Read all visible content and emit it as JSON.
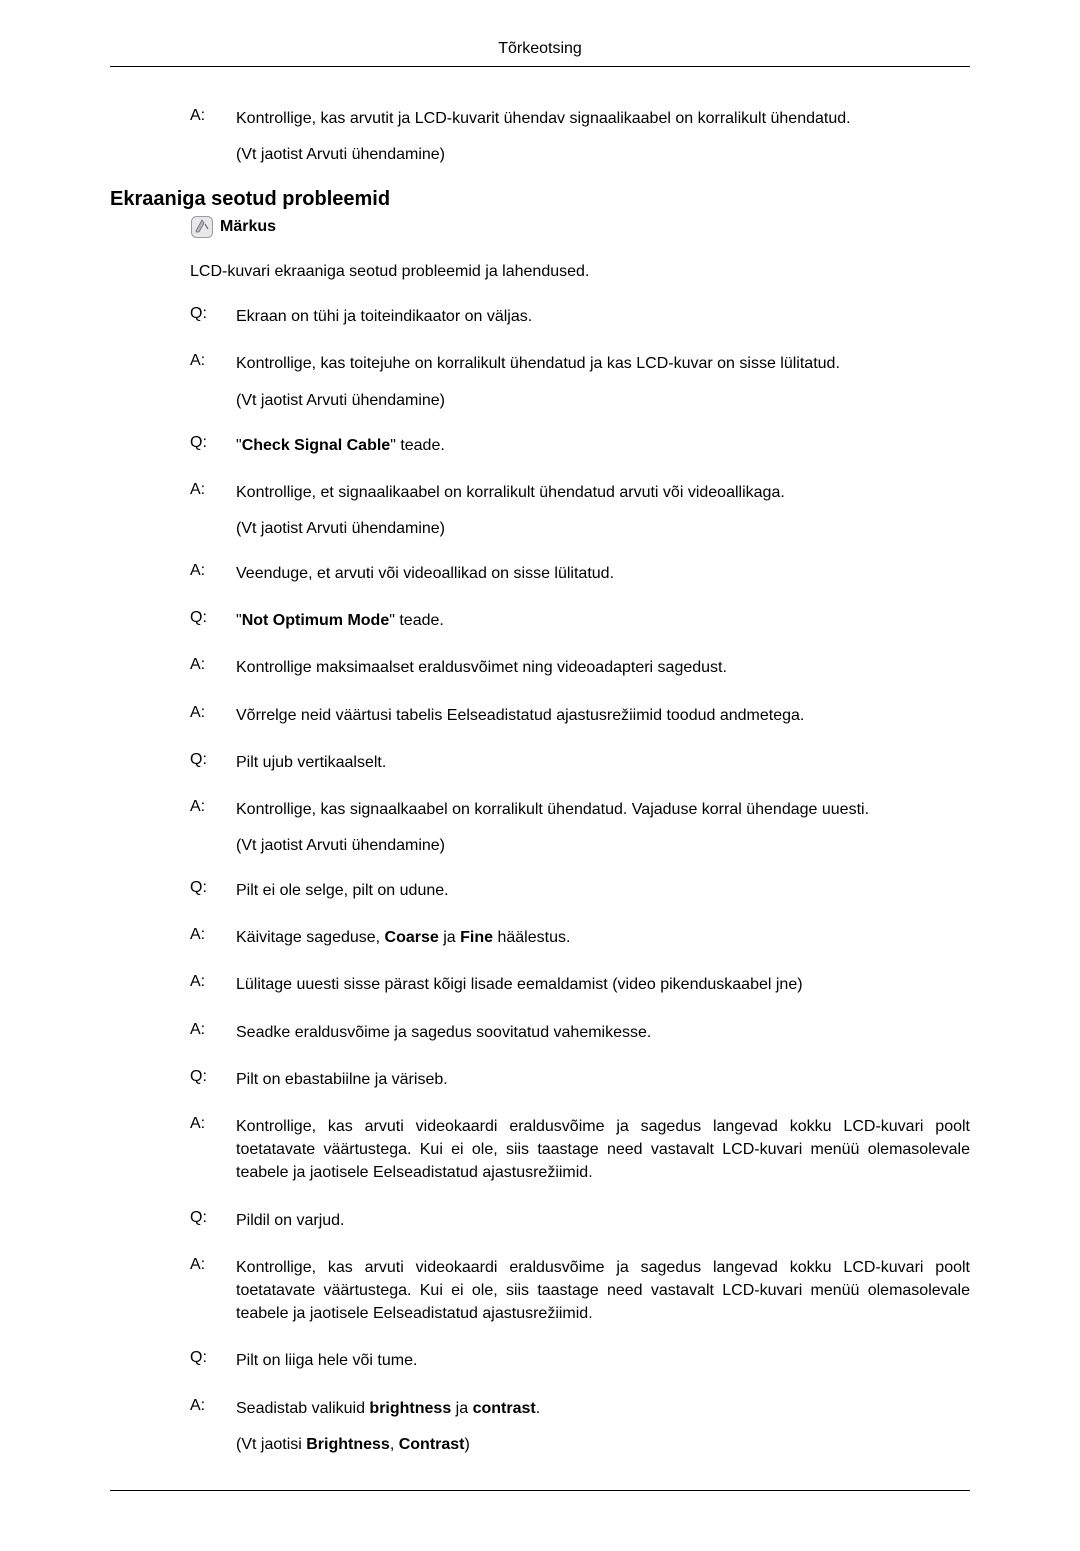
{
  "header": {
    "title": "Tõrkeotsing"
  },
  "top_qa": {
    "marker": "A:",
    "text": "Kontrollige, kas arvutit ja LCD-kuvarit ühendav signaalikaabel on korralikult ühendatud.",
    "sub": "(Vt jaotist Arvuti ühendamine)"
  },
  "section": {
    "heading": "Ekraaniga seotud probleemid",
    "note_label": "Märkus",
    "intro": "LCD-kuvari ekraaniga seotud probleemid ja lahendused."
  },
  "qa": [
    {
      "marker": "Q:",
      "segments": [
        {
          "t": "Ekraan on tühi ja toiteindikaator on väljas."
        }
      ]
    },
    {
      "marker": "A:",
      "segments": [
        {
          "t": "Kontrollige, kas toitejuhe on korralikult ühendatud ja kas LCD-kuvar on sisse lülitatud."
        }
      ],
      "sub": "(Vt jaotist Arvuti ühendamine)"
    },
    {
      "marker": "Q:",
      "segments": [
        {
          "t": "\""
        },
        {
          "t": "Check Signal Cable",
          "b": true
        },
        {
          "t": "\" teade."
        }
      ]
    },
    {
      "marker": "A:",
      "segments": [
        {
          "t": "Kontrollige, et signaalikaabel on korralikult ühendatud arvuti või videoallikaga."
        }
      ],
      "sub": "(Vt jaotist Arvuti ühendamine)"
    },
    {
      "marker": "A:",
      "segments": [
        {
          "t": "Veenduge, et arvuti või videoallikad on sisse lülitatud."
        }
      ]
    },
    {
      "marker": "Q:",
      "segments": [
        {
          "t": "\""
        },
        {
          "t": "Not Optimum Mode",
          "b": true
        },
        {
          "t": "\" teade."
        }
      ]
    },
    {
      "marker": "A:",
      "segments": [
        {
          "t": "Kontrollige maksimaalset eraldusvõimet ning videoadapteri sagedust."
        }
      ]
    },
    {
      "marker": "A:",
      "segments": [
        {
          "t": "Võrrelge neid väärtusi tabelis Eelseadistatud ajastusrežiimid toodud andmetega."
        }
      ]
    },
    {
      "marker": "Q:",
      "segments": [
        {
          "t": "Pilt ujub vertikaalselt."
        }
      ]
    },
    {
      "marker": "A:",
      "segments": [
        {
          "t": "Kontrollige, kas signaalkaabel on korralikult ühendatud. Vajaduse korral ühendage uuesti."
        }
      ],
      "sub": "(Vt jaotist Arvuti ühendamine)"
    },
    {
      "marker": "Q:",
      "segments": [
        {
          "t": "Pilt ei ole selge, pilt on udune."
        }
      ]
    },
    {
      "marker": "A:",
      "segments": [
        {
          "t": "Käivitage sageduse, "
        },
        {
          "t": "Coarse",
          "b": true
        },
        {
          "t": " ja "
        },
        {
          "t": "Fine",
          "b": true
        },
        {
          "t": " häälestus."
        }
      ]
    },
    {
      "marker": "A:",
      "segments": [
        {
          "t": "Lülitage uuesti sisse pärast kõigi lisade eemaldamist (video pikenduskaabel jne)"
        }
      ]
    },
    {
      "marker": "A:",
      "segments": [
        {
          "t": "Seadke eraldusvõime ja sagedus soovitatud vahemikesse."
        }
      ]
    },
    {
      "marker": "Q:",
      "segments": [
        {
          "t": "Pilt on ebastabiilne ja väriseb."
        }
      ]
    },
    {
      "marker": "A:",
      "segments": [
        {
          "t": "Kontrollige, kas arvuti videokaardi eraldusvõime ja sagedus langevad kokku LCD-kuvari poolt toetatavate väärtustega. Kui ei ole, siis taastage need vastavalt LCD-kuvari menüü olemasolevale teabele ja jaotisele Eelseadistatud ajastusrežiimid."
        }
      ]
    },
    {
      "marker": "Q:",
      "segments": [
        {
          "t": "Pildil on varjud."
        }
      ]
    },
    {
      "marker": "A:",
      "segments": [
        {
          "t": "Kontrollige, kas arvuti videokaardi eraldusvõime ja sagedus langevad kokku LCD-kuvari poolt toetatavate väärtustega. Kui ei ole, siis taastage need vastavalt LCD-kuvari menüü olemasolevale teabele ja jaotisele Eelseadistatud ajastusrežiimid."
        }
      ]
    },
    {
      "marker": "Q:",
      "segments": [
        {
          "t": "Pilt on liiga hele või tume."
        }
      ]
    },
    {
      "marker": "A:",
      "segments": [
        {
          "t": "Seadistab valikuid "
        },
        {
          "t": "brightness",
          "b": true
        },
        {
          "t": " ja "
        },
        {
          "t": "contrast",
          "b": true
        },
        {
          "t": "."
        }
      ],
      "sub_segments": [
        {
          "t": "(Vt jaotisi "
        },
        {
          "t": "Brightness",
          "b": true
        },
        {
          "t": ", "
        },
        {
          "t": "Contrast",
          "b": true
        },
        {
          "t": ")"
        }
      ]
    }
  ],
  "colors": {
    "text": "#000000",
    "background": "#ffffff",
    "rule": "#000000",
    "icon_fill": "#b8b9bb",
    "icon_stroke": "#6a6b6d"
  }
}
